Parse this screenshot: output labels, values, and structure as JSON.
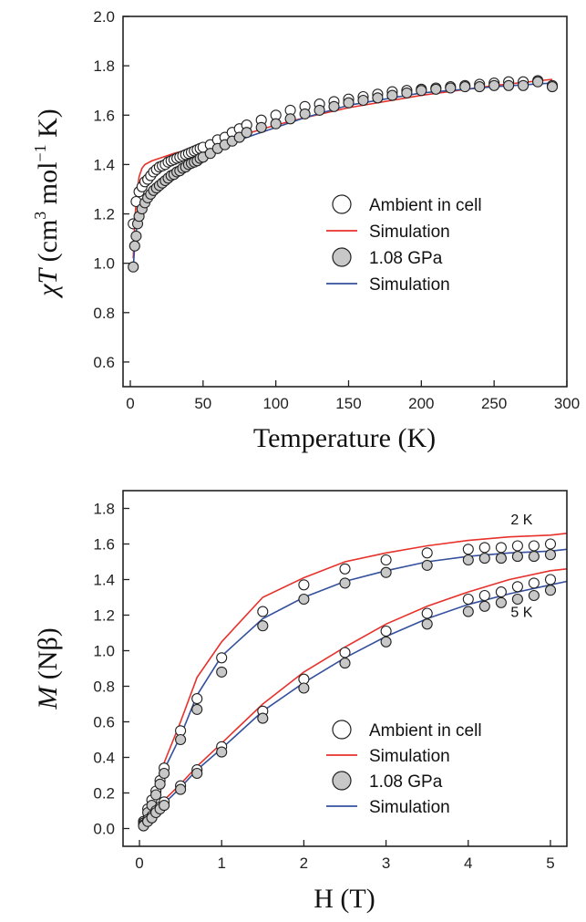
{
  "colors": {
    "red": "#e8312b",
    "blue": "#34509e",
    "marker_gray": "#c8c8c8",
    "frame": "#222222"
  },
  "chart_data": [
    {
      "type": "scatter",
      "xlabel": "Temperature (K)",
      "ylabel": "χT (cm3 mol−1 K)",
      "ylabel_parts": {
        "chi": "χ",
        "T": "T",
        "open": " (cm",
        "sup3": "3",
        "mol": " mol",
        "supm1": "−1",
        "close": " K)"
      },
      "xlim": [
        -5,
        300
      ],
      "ylim": [
        0.5,
        2.0
      ],
      "xticks": [
        0,
        50,
        100,
        150,
        200,
        250,
        300
      ],
      "yticks": [
        0.6,
        0.8,
        1.0,
        1.2,
        1.4,
        1.6,
        1.8,
        2.0
      ],
      "legend_position": "center-right",
      "grid": false,
      "legend": [
        {
          "label": "Ambient in cell",
          "style": "open-circle"
        },
        {
          "label": "Simulation",
          "style": "red-line"
        },
        {
          "label": "1.08 GPa",
          "style": "gray-circle"
        },
        {
          "label": "Simulation",
          "style": "blue-line"
        }
      ],
      "series": [
        {
          "name": "Ambient in cell",
          "kind": "markers",
          "fill": "open",
          "x": [
            2,
            4,
            6,
            8,
            10,
            12,
            14,
            16,
            18,
            20,
            22,
            24,
            26,
            28,
            30,
            32,
            34,
            36,
            38,
            40,
            42,
            44,
            46,
            48,
            50,
            55,
            60,
            65,
            70,
            75,
            80,
            90,
            100,
            110,
            120,
            130,
            140,
            150,
            160,
            170,
            180,
            190,
            200,
            210,
            220,
            230,
            240,
            250,
            260,
            270,
            280,
            290
          ],
          "y": [
            1.16,
            1.25,
            1.29,
            1.31,
            1.33,
            1.34,
            1.355,
            1.37,
            1.38,
            1.39,
            1.395,
            1.4,
            1.41,
            1.415,
            1.42,
            1.425,
            1.43,
            1.435,
            1.44,
            1.445,
            1.45,
            1.455,
            1.46,
            1.465,
            1.47,
            1.48,
            1.5,
            1.51,
            1.53,
            1.545,
            1.56,
            1.58,
            1.6,
            1.62,
            1.635,
            1.645,
            1.655,
            1.665,
            1.675,
            1.685,
            1.695,
            1.7,
            1.705,
            1.71,
            1.715,
            1.72,
            1.725,
            1.73,
            1.735,
            1.735,
            1.74,
            1.72
          ]
        },
        {
          "name": "1.08 GPa",
          "kind": "markers",
          "fill": "gray",
          "x": [
            2,
            3,
            4,
            5,
            6,
            8,
            10,
            12,
            14,
            16,
            18,
            20,
            22,
            24,
            26,
            28,
            30,
            32,
            34,
            36,
            38,
            40,
            42,
            44,
            46,
            48,
            50,
            55,
            60,
            65,
            70,
            75,
            80,
            90,
            100,
            110,
            120,
            130,
            140,
            150,
            160,
            170,
            180,
            190,
            200,
            210,
            220,
            230,
            240,
            250,
            260,
            270,
            280,
            290
          ],
          "y": [
            0.985,
            1.07,
            1.11,
            1.16,
            1.19,
            1.22,
            1.245,
            1.265,
            1.28,
            1.295,
            1.305,
            1.315,
            1.325,
            1.335,
            1.345,
            1.355,
            1.36,
            1.37,
            1.375,
            1.385,
            1.39,
            1.4,
            1.405,
            1.41,
            1.415,
            1.425,
            1.43,
            1.445,
            1.465,
            1.48,
            1.495,
            1.51,
            1.53,
            1.55,
            1.565,
            1.585,
            1.605,
            1.62,
            1.635,
            1.65,
            1.66,
            1.67,
            1.68,
            1.69,
            1.7,
            1.705,
            1.71,
            1.715,
            1.715,
            1.72,
            1.72,
            1.72,
            1.735,
            1.715
          ]
        },
        {
          "name": "Simulation",
          "kind": "line",
          "color": "red",
          "x": [
            2,
            3,
            4,
            6,
            8,
            10,
            15,
            20,
            30,
            40,
            50,
            60,
            80,
            100,
            120,
            150,
            200,
            250,
            290
          ],
          "y": [
            1.02,
            1.16,
            1.26,
            1.35,
            1.385,
            1.4,
            1.415,
            1.425,
            1.445,
            1.46,
            1.475,
            1.49,
            1.525,
            1.56,
            1.59,
            1.63,
            1.68,
            1.72,
            1.745
          ]
        },
        {
          "name": "Simulation",
          "kind": "line",
          "color": "blue",
          "x": [
            2,
            3,
            4,
            6,
            8,
            10,
            15,
            20,
            30,
            40,
            50,
            60,
            80,
            100,
            120,
            150,
            200,
            250,
            290
          ],
          "y": [
            0.98,
            1.07,
            1.13,
            1.19,
            1.22,
            1.245,
            1.28,
            1.305,
            1.355,
            1.395,
            1.43,
            1.46,
            1.51,
            1.55,
            1.59,
            1.64,
            1.69,
            1.715,
            1.73
          ]
        }
      ]
    },
    {
      "type": "scatter",
      "xlabel": "H (T)",
      "ylabel": "M (Nβ)",
      "ylabel_parts": {
        "M": "M",
        "rest": " (Nβ)"
      },
      "xlim": [
        -0.2,
        5.2
      ],
      "ylim": [
        -0.1,
        1.9
      ],
      "xticks": [
        0,
        1,
        2,
        3,
        4,
        5
      ],
      "yticks": [
        0.0,
        0.2,
        0.4,
        0.6,
        0.8,
        1.0,
        1.2,
        1.4,
        1.6,
        1.8
      ],
      "legend_position": "bottom-right",
      "grid": false,
      "annotations": [
        {
          "text": "2 K",
          "x": 4.65,
          "y": 1.71
        },
        {
          "text": "5 K",
          "x": 4.65,
          "y": 1.19
        }
      ],
      "legend": [
        {
          "label": "Ambient in cell",
          "style": "open-circle"
        },
        {
          "label": "Simulation",
          "style": "red-line"
        },
        {
          "label": "1.08 GPa",
          "style": "gray-circle"
        },
        {
          "label": "Simulation",
          "style": "blue-line"
        }
      ],
      "series": [
        {
          "name": "Ambient in cell 2 K",
          "kind": "markers",
          "fill": "open",
          "x": [
            0.05,
            0.1,
            0.15,
            0.2,
            0.25,
            0.3,
            0.5,
            0.7,
            1.0,
            1.5,
            2.0,
            2.5,
            3.0,
            3.5,
            4.0,
            4.2,
            4.4,
            4.6,
            4.8,
            5.0
          ],
          "y": [
            0.04,
            0.11,
            0.16,
            0.21,
            0.27,
            0.34,
            0.55,
            0.73,
            0.96,
            1.22,
            1.37,
            1.46,
            1.51,
            1.55,
            1.57,
            1.58,
            1.58,
            1.59,
            1.59,
            1.6
          ]
        },
        {
          "name": "1.08 GPa 2 K",
          "kind": "markers",
          "fill": "gray",
          "x": [
            0.05,
            0.1,
            0.15,
            0.2,
            0.25,
            0.3,
            0.5,
            0.7,
            1.0,
            1.5,
            2.0,
            2.5,
            3.0,
            3.5,
            4.0,
            4.2,
            4.4,
            4.6,
            4.8,
            5.0
          ],
          "y": [
            0.03,
            0.09,
            0.13,
            0.19,
            0.25,
            0.31,
            0.5,
            0.67,
            0.88,
            1.14,
            1.29,
            1.38,
            1.44,
            1.48,
            1.51,
            1.52,
            1.52,
            1.53,
            1.53,
            1.54
          ]
        },
        {
          "name": "Ambient in cell 5 K",
          "kind": "markers",
          "fill": "open",
          "x": [
            0.05,
            0.1,
            0.15,
            0.2,
            0.25,
            0.3,
            0.5,
            0.7,
            1.0,
            1.5,
            2.0,
            2.5,
            3.0,
            3.5,
            4.0,
            4.2,
            4.4,
            4.6,
            4.8,
            5.0
          ],
          "y": [
            0.02,
            0.05,
            0.07,
            0.1,
            0.12,
            0.15,
            0.24,
            0.33,
            0.46,
            0.66,
            0.84,
            0.99,
            1.11,
            1.21,
            1.29,
            1.31,
            1.33,
            1.36,
            1.38,
            1.4
          ]
        },
        {
          "name": "1.08 GPa 5 K",
          "kind": "markers",
          "fill": "gray",
          "x": [
            0.05,
            0.1,
            0.15,
            0.2,
            0.25,
            0.3,
            0.5,
            0.7,
            1.0,
            1.5,
            2.0,
            2.5,
            3.0,
            3.5,
            4.0,
            4.2,
            4.4,
            4.6,
            4.8,
            5.0
          ],
          "y": [
            0.015,
            0.04,
            0.06,
            0.09,
            0.11,
            0.13,
            0.22,
            0.31,
            0.43,
            0.62,
            0.79,
            0.93,
            1.05,
            1.15,
            1.22,
            1.25,
            1.27,
            1.29,
            1.31,
            1.34
          ]
        },
        {
          "name": "Simulation",
          "kind": "line",
          "color": "red",
          "x": [
            0,
            0.3,
            0.5,
            0.7,
            1.0,
            1.5,
            2.0,
            2.5,
            3.0,
            3.5,
            4.0,
            4.5,
            5.0,
            5.2
          ],
          "y": [
            0,
            0.37,
            0.6,
            0.85,
            1.05,
            1.3,
            1.41,
            1.5,
            1.55,
            1.59,
            1.62,
            1.64,
            1.65,
            1.66
          ]
        },
        {
          "name": "Simulation",
          "kind": "line",
          "color": "blue",
          "x": [
            0,
            0.3,
            0.5,
            0.7,
            1.0,
            1.5,
            2.0,
            2.5,
            3.0,
            3.5,
            4.0,
            4.5,
            5.0,
            5.2
          ],
          "y": [
            0,
            0.33,
            0.52,
            0.75,
            0.97,
            1.18,
            1.3,
            1.39,
            1.45,
            1.5,
            1.53,
            1.55,
            1.56,
            1.57
          ]
        },
        {
          "name": "Simulation",
          "kind": "line",
          "color": "red",
          "x": [
            0,
            0.3,
            0.5,
            0.7,
            1.0,
            1.5,
            2.0,
            2.5,
            3.0,
            3.5,
            4.0,
            4.5,
            5.0,
            5.2
          ],
          "y": [
            0,
            0.16,
            0.25,
            0.35,
            0.48,
            0.7,
            0.88,
            1.02,
            1.15,
            1.25,
            1.33,
            1.4,
            1.45,
            1.46
          ]
        },
        {
          "name": "Simulation",
          "kind": "line",
          "color": "blue",
          "x": [
            0,
            0.3,
            0.5,
            0.7,
            1.0,
            1.5,
            2.0,
            2.5,
            3.0,
            3.5,
            4.0,
            4.5,
            5.0,
            5.2
          ],
          "y": [
            0,
            0.14,
            0.23,
            0.33,
            0.45,
            0.66,
            0.82,
            0.96,
            1.08,
            1.18,
            1.26,
            1.32,
            1.37,
            1.39
          ]
        }
      ]
    }
  ]
}
